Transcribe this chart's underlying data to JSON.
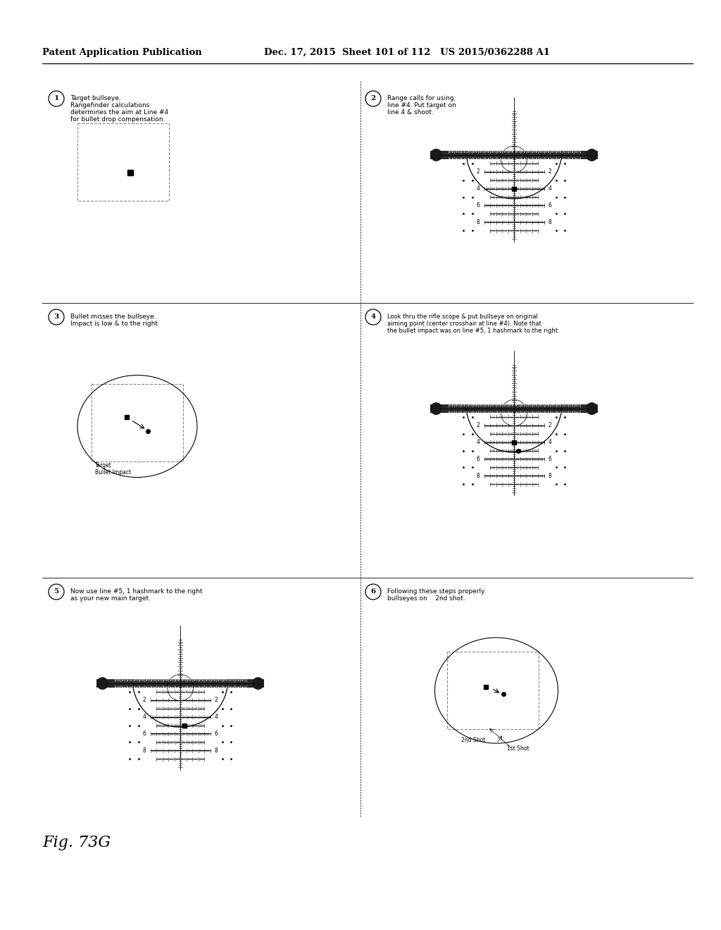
{
  "title_left": "Patent Application Publication",
  "title_right": "Dec. 17, 2015  Sheet 101 of 112   US 2015/0362288 A1",
  "fig_label": "Fig. 73G",
  "p1_num": "1",
  "p1_text_lines": [
    "Target bullseye.",
    "Rangefinder calculations",
    "determines the aim at Line #4",
    "for bullet drop compensation."
  ],
  "p2_num": "2",
  "p2_text_lines": [
    "Range calls for using",
    "line #4. Put target on",
    "line 4 & shoot."
  ],
  "p3_num": "3",
  "p3_text_lines": [
    "Bullet misses the bullseye.",
    "Impact is low & to the right"
  ],
  "p4_num": "4",
  "p4_text_lines": [
    "Look thru the rifle scope & put bullseye on original",
    "aiming point (center crosshair at line #4). Note that",
    "the bullet impact was on line #5, 1 hashmark to the right."
  ],
  "p5_num": "5",
  "p5_text_lines": [
    "Now use line #5, 1 hashmark to the right",
    "as your new main target."
  ],
  "p6_num": "6",
  "p6_text_lines": [
    "Following these steps properly",
    "bullseyes on    2nd shot."
  ],
  "bg_color": "#ffffff"
}
